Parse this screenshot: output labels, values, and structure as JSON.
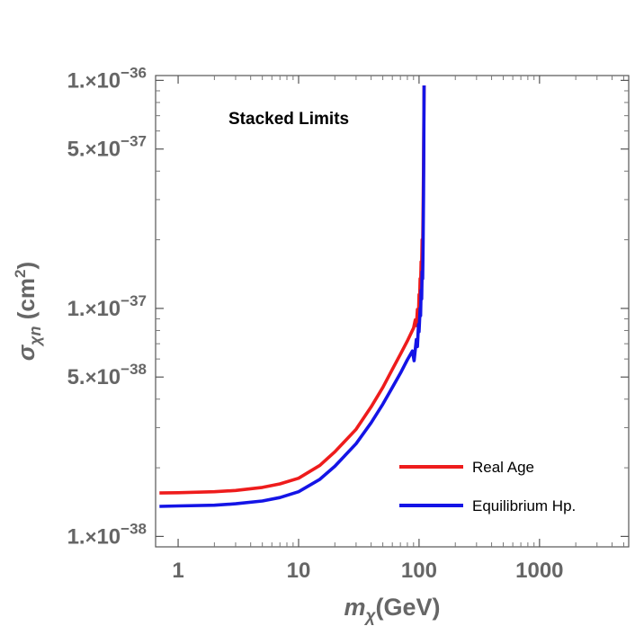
{
  "chart_data": {
    "type": "line",
    "annotation": "Stacked Limits",
    "xlabel": {
      "main": "m",
      "sub": "χ",
      "rest": "(GeV)"
    },
    "ylabel": {
      "main": "σ",
      "sub": "χn",
      "rest": " (cm",
      "sup": "2",
      "close": ")"
    },
    "x_scale": "log",
    "y_scale": "log",
    "xlim": [
      0.65,
      5500
    ],
    "ylim": [
      9e-39,
      1.05e-36
    ],
    "grid": false,
    "legend_position": "bottom-right",
    "x_ticks": [
      {
        "value": 1,
        "label": "1"
      },
      {
        "value": 10,
        "label": "10"
      },
      {
        "value": 100,
        "label": "100"
      },
      {
        "value": 1000,
        "label": "1000"
      }
    ],
    "x_minor_ticks": [
      2,
      3,
      4,
      5,
      6,
      7,
      8,
      9,
      20,
      30,
      40,
      50,
      60,
      70,
      80,
      90,
      200,
      300,
      400,
      500,
      600,
      700,
      800,
      900,
      2000,
      3000,
      4000,
      5000
    ],
    "y_ticks": [
      {
        "value": 1e-38,
        "mant": "1.",
        "exp": "−38"
      },
      {
        "value": 5e-38,
        "mant": "5.",
        "exp": "−38"
      },
      {
        "value": 1e-37,
        "mant": "1.",
        "exp": "−37"
      },
      {
        "value": 5e-37,
        "mant": "5.",
        "exp": "−37"
      },
      {
        "value": 1e-36,
        "mant": "1.",
        "exp": "−36"
      }
    ],
    "y_minor_ticks": [
      2e-38,
      3e-38,
      4e-38,
      6e-38,
      7e-38,
      8e-38,
      9e-38,
      2e-37,
      3e-37,
      4e-37,
      6e-37,
      7e-37,
      8e-37,
      9e-37
    ],
    "series": [
      {
        "name": "Real Age",
        "color": "#ee1c1c",
        "points": [
          [
            0.7,
            1.55e-38
          ],
          [
            1,
            1.555e-38
          ],
          [
            2,
            1.57e-38
          ],
          [
            3,
            1.59e-38
          ],
          [
            5,
            1.64e-38
          ],
          [
            7,
            1.7e-38
          ],
          [
            10,
            1.8e-38
          ],
          [
            15,
            2.05e-38
          ],
          [
            20,
            2.35e-38
          ],
          [
            30,
            2.95e-38
          ],
          [
            40,
            3.7e-38
          ],
          [
            50,
            4.5e-38
          ],
          [
            60,
            5.4e-38
          ],
          [
            70,
            6.3e-38
          ],
          [
            80,
            7.2e-38
          ],
          [
            90,
            8.2e-38
          ],
          [
            93,
            8.9e-38
          ],
          [
            95,
            8.4e-38
          ],
          [
            97,
            9.9e-38
          ],
          [
            99,
            9.4e-38
          ],
          [
            100,
            1.15e-37
          ],
          [
            101,
            1.08e-37
          ],
          [
            102,
            1.35e-37
          ],
          [
            103,
            1.25e-37
          ],
          [
            104,
            1.6e-37
          ],
          [
            105,
            1.5e-37
          ],
          [
            106,
            2e-37
          ],
          [
            107,
            1.85e-37
          ],
          [
            108,
            2.7e-37
          ],
          [
            109,
            4.2e-37
          ],
          [
            109.5,
            6.5e-37
          ],
          [
            110,
            9.5e-37
          ]
        ]
      },
      {
        "name": "Equilibrium Hp.",
        "color": "#1414e6",
        "points": [
          [
            0.7,
            1.355e-38
          ],
          [
            1,
            1.36e-38
          ],
          [
            2,
            1.37e-38
          ],
          [
            3,
            1.39e-38
          ],
          [
            5,
            1.43e-38
          ],
          [
            7,
            1.48e-38
          ],
          [
            10,
            1.57e-38
          ],
          [
            15,
            1.78e-38
          ],
          [
            20,
            2.03e-38
          ],
          [
            30,
            2.55e-38
          ],
          [
            40,
            3.15e-38
          ],
          [
            50,
            3.8e-38
          ],
          [
            60,
            4.5e-38
          ],
          [
            70,
            5.2e-38
          ],
          [
            80,
            5.95e-38
          ],
          [
            88,
            6.5e-38
          ],
          [
            91,
            5.9e-38
          ],
          [
            95,
            7.3e-38
          ],
          [
            97,
            6.8e-38
          ],
          [
            99,
            8.5e-38
          ],
          [
            100,
            7.9e-38
          ],
          [
            102,
            1e-37
          ],
          [
            103,
            9.3e-38
          ],
          [
            104,
            1.2e-37
          ],
          [
            105,
            1.1e-37
          ],
          [
            106,
            1.45e-37
          ],
          [
            107,
            1.35e-37
          ],
          [
            108,
            1.9e-37
          ],
          [
            109,
            3.2e-37
          ],
          [
            109.5,
            5.5e-37
          ],
          [
            110,
            9.5e-37
          ]
        ]
      }
    ]
  }
}
